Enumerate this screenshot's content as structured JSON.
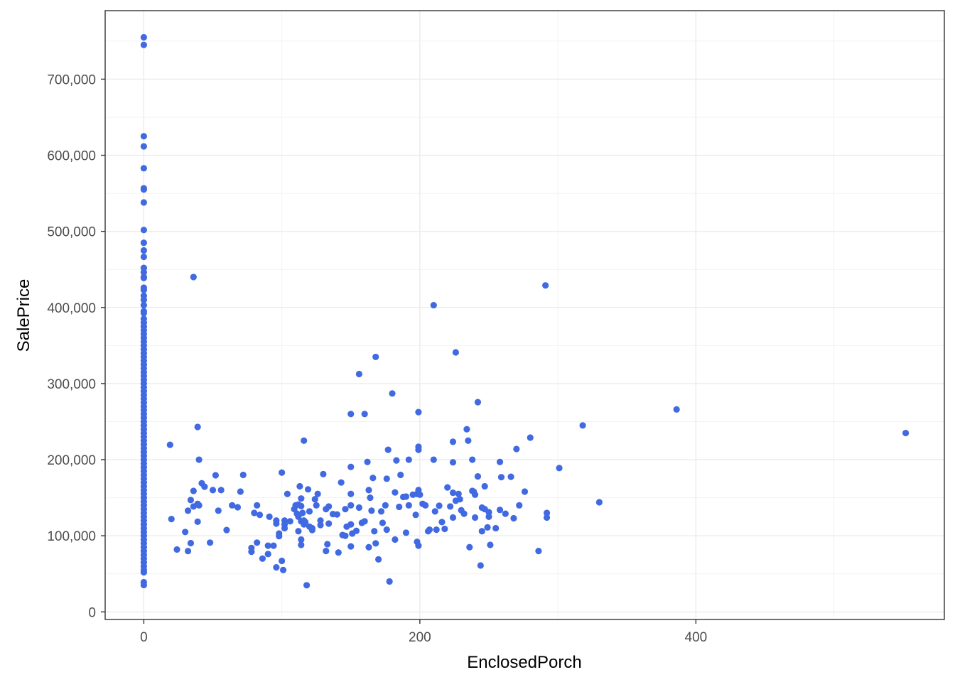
{
  "chart_data": {
    "type": "scatter",
    "title": "",
    "xlabel": "EnclosedPorch",
    "ylabel": "SalePrice",
    "xlim": [
      -28,
      580
    ],
    "ylim": [
      -10000,
      790000
    ],
    "x_ticks": [
      0,
      200,
      400
    ],
    "x_tick_labels": [
      "0",
      "200",
      "400"
    ],
    "y_ticks": [
      0,
      100000,
      200000,
      300000,
      400000,
      500000,
      600000,
      700000
    ],
    "y_tick_labels": [
      "0",
      "100,000",
      "200,000",
      "300,000",
      "400,000",
      "500,000",
      "600,000",
      "700,000"
    ],
    "grid": true,
    "point_color": "#4169E1",
    "points": [
      [
        0,
        755000
      ],
      [
        0,
        745000
      ],
      [
        0,
        625000
      ],
      [
        0,
        611657
      ],
      [
        0,
        582933
      ],
      [
        0,
        556581
      ],
      [
        0,
        555000
      ],
      [
        0,
        538000
      ],
      [
        0,
        501837
      ],
      [
        0,
        485000
      ],
      [
        0,
        475000
      ],
      [
        0,
        466500
      ],
      [
        0,
        451950
      ],
      [
        0,
        446261
      ],
      [
        0,
        440000
      ],
      [
        0,
        438780
      ],
      [
        0,
        426000
      ],
      [
        0,
        423000
      ],
      [
        0,
        415298
      ],
      [
        0,
        410000
      ],
      [
        0,
        403000
      ],
      [
        0,
        395000
      ],
      [
        0,
        392500
      ],
      [
        0,
        385000
      ],
      [
        0,
        380000
      ],
      [
        0,
        375000
      ],
      [
        0,
        370000
      ],
      [
        0,
        365000
      ],
      [
        0,
        360000
      ],
      [
        0,
        355000
      ],
      [
        0,
        350000
      ],
      [
        0,
        345000
      ],
      [
        0,
        340000
      ],
      [
        0,
        335000
      ],
      [
        0,
        330000
      ],
      [
        0,
        325000
      ],
      [
        0,
        320000
      ],
      [
        0,
        315000
      ],
      [
        0,
        310000
      ],
      [
        0,
        305000
      ],
      [
        0,
        300000
      ],
      [
        0,
        295000
      ],
      [
        0,
        290000
      ],
      [
        0,
        285000
      ],
      [
        0,
        280000
      ],
      [
        0,
        275000
      ],
      [
        0,
        270000
      ],
      [
        0,
        265000
      ],
      [
        0,
        260000
      ],
      [
        0,
        255000
      ],
      [
        0,
        250000
      ],
      [
        0,
        245000
      ],
      [
        0,
        240000
      ],
      [
        0,
        235000
      ],
      [
        0,
        230000
      ],
      [
        0,
        225000
      ],
      [
        0,
        220000
      ],
      [
        0,
        215000
      ],
      [
        0,
        210000
      ],
      [
        0,
        205000
      ],
      [
        0,
        200000
      ],
      [
        0,
        195000
      ],
      [
        0,
        190000
      ],
      [
        0,
        185000
      ],
      [
        0,
        180000
      ],
      [
        0,
        175000
      ],
      [
        0,
        170000
      ],
      [
        0,
        165000
      ],
      [
        0,
        160000
      ],
      [
        0,
        155000
      ],
      [
        0,
        150000
      ],
      [
        0,
        145000
      ],
      [
        0,
        140000
      ],
      [
        0,
        135000
      ],
      [
        0,
        130000
      ],
      [
        0,
        125000
      ],
      [
        0,
        120000
      ],
      [
        0,
        115000
      ],
      [
        0,
        110000
      ],
      [
        0,
        105000
      ],
      [
        0,
        100000
      ],
      [
        0,
        95000
      ],
      [
        0,
        90000
      ],
      [
        0,
        85000
      ],
      [
        0,
        80000
      ],
      [
        0,
        75000
      ],
      [
        0,
        70000
      ],
      [
        0,
        65000
      ],
      [
        0,
        60000
      ],
      [
        0,
        55000
      ],
      [
        0,
        52000
      ],
      [
        0,
        39000
      ],
      [
        0,
        35311
      ],
      [
        19,
        219500
      ],
      [
        20,
        122000
      ],
      [
        24,
        82000
      ],
      [
        30,
        105000
      ],
      [
        32,
        79900
      ],
      [
        32,
        133000
      ],
      [
        34,
        90350
      ],
      [
        34,
        147000
      ],
      [
        36,
        138500
      ],
      [
        36,
        159000
      ],
      [
        36,
        440000
      ],
      [
        39,
        243000
      ],
      [
        39,
        142000
      ],
      [
        39,
        118500
      ],
      [
        40,
        200000
      ],
      [
        40,
        140000
      ],
      [
        42,
        169000
      ],
      [
        44,
        164500
      ],
      [
        48,
        91000
      ],
      [
        50,
        160000
      ],
      [
        52,
        179500
      ],
      [
        54,
        133000
      ],
      [
        56,
        160000
      ],
      [
        60,
        107500
      ],
      [
        64,
        140000
      ],
      [
        68,
        137500
      ],
      [
        70,
        158000
      ],
      [
        72,
        180000
      ],
      [
        78,
        84000
      ],
      [
        78,
        79000
      ],
      [
        80,
        130000
      ],
      [
        82,
        91000
      ],
      [
        82,
        140000
      ],
      [
        84,
        127500
      ],
      [
        86,
        70000
      ],
      [
        90,
        87000
      ],
      [
        90,
        76000
      ],
      [
        91,
        125000
      ],
      [
        94,
        87000
      ],
      [
        96,
        58500
      ],
      [
        96,
        120000
      ],
      [
        96,
        116000
      ],
      [
        98,
        99500
      ],
      [
        98,
        103000
      ],
      [
        100,
        183000
      ],
      [
        100,
        67000
      ],
      [
        101,
        55000
      ],
      [
        102,
        120000
      ],
      [
        102,
        110000
      ],
      [
        102,
        115000
      ],
      [
        104,
        155000
      ],
      [
        106,
        119000
      ],
      [
        109,
        135000
      ],
      [
        110,
        140000
      ],
      [
        111,
        129000
      ],
      [
        112,
        141000
      ],
      [
        112,
        125000
      ],
      [
        112,
        106000
      ],
      [
        113,
        165000
      ],
      [
        114,
        149000
      ],
      [
        114,
        139000
      ],
      [
        114,
        119000
      ],
      [
        114,
        95000
      ],
      [
        114,
        88000
      ],
      [
        115,
        130000
      ],
      [
        116,
        225000
      ],
      [
        116,
        120000
      ],
      [
        116,
        115000
      ],
      [
        117,
        118000
      ],
      [
        118,
        35000
      ],
      [
        119,
        161000
      ],
      [
        120,
        112000
      ],
      [
        120,
        132000
      ],
      [
        122,
        110000
      ],
      [
        122,
        107500
      ],
      [
        124,
        148000
      ],
      [
        125,
        140000
      ],
      [
        126,
        155000
      ],
      [
        128,
        120000
      ],
      [
        128,
        114000
      ],
      [
        130,
        181000
      ],
      [
        132,
        135000
      ],
      [
        132,
        80000
      ],
      [
        133,
        89000
      ],
      [
        134,
        138500
      ],
      [
        134,
        116000
      ],
      [
        137,
        128500
      ],
      [
        140,
        128000
      ],
      [
        141,
        78000
      ],
      [
        143,
        170000
      ],
      [
        144,
        101000
      ],
      [
        146,
        135000
      ],
      [
        146,
        100000
      ],
      [
        147,
        112000
      ],
      [
        150,
        260000
      ],
      [
        150,
        155000
      ],
      [
        150,
        140000
      ],
      [
        150,
        115000
      ],
      [
        150,
        86000
      ],
      [
        150,
        190500
      ],
      [
        151,
        103000
      ],
      [
        154,
        106500
      ],
      [
        156,
        312500
      ],
      [
        156,
        137000
      ],
      [
        158,
        117000
      ],
      [
        160,
        260000
      ],
      [
        160,
        119000
      ],
      [
        162,
        197000
      ],
      [
        163,
        160000
      ],
      [
        163,
        85000
      ],
      [
        164,
        150000
      ],
      [
        165,
        133000
      ],
      [
        166,
        176000
      ],
      [
        167,
        106000
      ],
      [
        168,
        335000
      ],
      [
        168,
        90000
      ],
      [
        170,
        69000
      ],
      [
        172,
        132000
      ],
      [
        173,
        117000
      ],
      [
        175,
        140000
      ],
      [
        176,
        108000
      ],
      [
        176,
        175000
      ],
      [
        177,
        213000
      ],
      [
        178,
        40000
      ],
      [
        180,
        287000
      ],
      [
        182,
        157000
      ],
      [
        182,
        95000
      ],
      [
        183,
        199000
      ],
      [
        185,
        138000
      ],
      [
        186,
        180000
      ],
      [
        188,
        151000
      ],
      [
        190,
        104000
      ],
      [
        190,
        151500
      ],
      [
        192,
        200000
      ],
      [
        192,
        140000
      ],
      [
        195,
        154000
      ],
      [
        197,
        127500
      ],
      [
        198,
        155000
      ],
      [
        198,
        92000
      ],
      [
        199,
        87000
      ],
      [
        199,
        217000
      ],
      [
        199,
        213000
      ],
      [
        199,
        262500
      ],
      [
        199,
        160000
      ],
      [
        200,
        154000
      ],
      [
        202,
        142000
      ],
      [
        204,
        140000
      ],
      [
        206,
        106000
      ],
      [
        207,
        108000
      ],
      [
        210,
        200000
      ],
      [
        210,
        403000
      ],
      [
        211,
        132000
      ],
      [
        212,
        108000
      ],
      [
        214,
        139500
      ],
      [
        216,
        118000
      ],
      [
        218,
        109000
      ],
      [
        220,
        163500
      ],
      [
        222,
        138500
      ],
      [
        224,
        124000
      ],
      [
        224,
        196500
      ],
      [
        224,
        223500
      ],
      [
        224,
        156500
      ],
      [
        226,
        341000
      ],
      [
        226,
        146000
      ],
      [
        228,
        155000
      ],
      [
        229,
        148000
      ],
      [
        230,
        133500
      ],
      [
        232,
        129000
      ],
      [
        234,
        240000
      ],
      [
        235,
        225000
      ],
      [
        236,
        85000
      ],
      [
        238,
        200000
      ],
      [
        238,
        159000
      ],
      [
        239,
        158000
      ],
      [
        240,
        124000
      ],
      [
        240,
        154000
      ],
      [
        242,
        178000
      ],
      [
        242,
        275500
      ],
      [
        244,
        61000
      ],
      [
        245,
        137000
      ],
      [
        245,
        106000
      ],
      [
        247,
        135000
      ],
      [
        247,
        165000
      ],
      [
        249,
        111000
      ],
      [
        250,
        131000
      ],
      [
        250,
        125000
      ],
      [
        251,
        88000
      ],
      [
        255,
        110000
      ],
      [
        258,
        197000
      ],
      [
        258,
        134000
      ],
      [
        259,
        177000
      ],
      [
        262,
        129000
      ],
      [
        266,
        177500
      ],
      [
        268,
        123000
      ],
      [
        270,
        214000
      ],
      [
        272,
        140000
      ],
      [
        276,
        158000
      ],
      [
        280,
        229000
      ],
      [
        286,
        80000
      ],
      [
        291,
        429000
      ],
      [
        292,
        124000
      ],
      [
        292,
        130000
      ],
      [
        301,
        189000
      ],
      [
        318,
        245000
      ],
      [
        330,
        144000
      ],
      [
        386,
        266000
      ],
      [
        552,
        235000
      ]
    ]
  }
}
